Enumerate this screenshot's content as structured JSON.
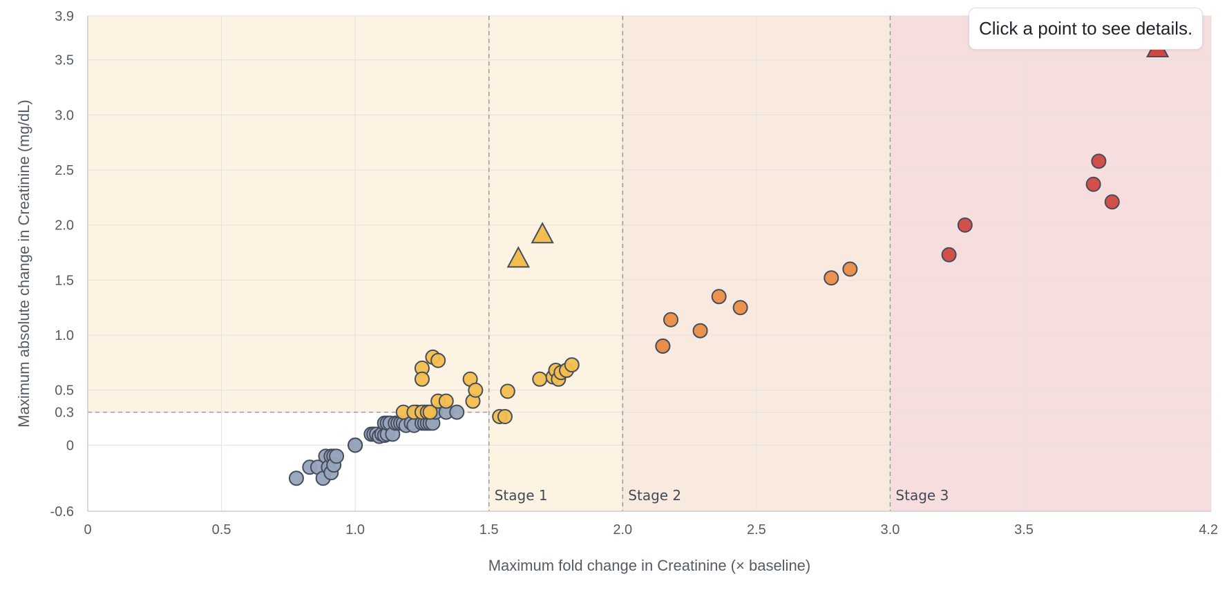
{
  "hint": {
    "text": "Click a point to see details."
  },
  "colors": {
    "stage_bg_1": "#fcf3e2",
    "stage_bg_2": "#f9eadf",
    "stage_bg_3": "#f6dede",
    "grid": "#e4e0dc",
    "threshold_line": "#999999",
    "none": "#96a4ba",
    "stage1": "#f3be4f",
    "stage2": "#ea8d46",
    "stage3": "#cf4841",
    "marker_stroke": "#454c5c"
  },
  "chart_data": {
    "type": "scatter",
    "title": "",
    "xlabel": "Maximum fold change in Creatinine (× baseline)",
    "ylabel": "Maximum absolute change in Creatinine (mg/dL)",
    "xlim": [
      0,
      4.2
    ],
    "ylim": [
      -0.6,
      3.9
    ],
    "x_ticks": [
      "0",
      "0.5",
      "1.0",
      "1.5",
      "2.0",
      "2.5",
      "3.0",
      "3.5",
      "4.2"
    ],
    "y_ticks": [
      "-0.6",
      "0",
      "0.3",
      "0.5",
      "1.0",
      "1.5",
      "2.0",
      "2.5",
      "3.0",
      "3.5",
      "3.9"
    ],
    "grid": true,
    "legend": "none",
    "thresholds": {
      "absolute_change": 0.3,
      "fold_stage1": 1.5,
      "fold_stage2": 2.0,
      "fold_stage3": 3.0
    },
    "stage_labels": [
      "Stage 1",
      "Stage 2",
      "Stage 3"
    ],
    "series": [
      {
        "key": "none",
        "marker": "circle",
        "points": [
          [
            0.78,
            -0.3
          ],
          [
            0.83,
            -0.2
          ],
          [
            0.86,
            -0.2
          ],
          [
            0.88,
            -0.3
          ],
          [
            0.89,
            -0.1
          ],
          [
            0.9,
            -0.2
          ],
          [
            0.91,
            -0.1
          ],
          [
            0.91,
            -0.25
          ],
          [
            0.92,
            -0.1
          ],
          [
            0.92,
            -0.18
          ],
          [
            0.93,
            -0.1
          ],
          [
            1.0,
            0.0
          ],
          [
            1.0,
            0.0
          ],
          [
            1.0,
            0.0
          ],
          [
            1.06,
            0.1
          ],
          [
            1.07,
            0.1
          ],
          [
            1.08,
            0.1
          ],
          [
            1.09,
            0.08
          ],
          [
            1.1,
            0.1
          ],
          [
            1.11,
            0.2
          ],
          [
            1.11,
            0.09
          ],
          [
            1.12,
            0.1
          ],
          [
            1.12,
            0.2
          ],
          [
            1.13,
            0.2
          ],
          [
            1.14,
            0.1
          ],
          [
            1.15,
            0.2
          ],
          [
            1.16,
            0.2
          ],
          [
            1.17,
            0.2
          ],
          [
            1.18,
            0.2
          ],
          [
            1.19,
            0.18
          ],
          [
            1.21,
            0.2
          ],
          [
            1.22,
            0.18
          ],
          [
            1.23,
            0.3
          ],
          [
            1.25,
            0.2
          ],
          [
            1.26,
            0.2
          ],
          [
            1.26,
            0.3
          ],
          [
            1.27,
            0.2
          ],
          [
            1.28,
            0.2
          ],
          [
            1.29,
            0.2
          ],
          [
            1.3,
            0.3
          ],
          [
            1.34,
            0.3
          ],
          [
            1.38,
            0.3
          ]
        ]
      },
      {
        "key": "stage1",
        "marker": "circle",
        "points": [
          [
            1.18,
            0.3
          ],
          [
            1.22,
            0.3
          ],
          [
            1.25,
            0.7
          ],
          [
            1.25,
            0.6
          ],
          [
            1.25,
            0.3
          ],
          [
            1.27,
            0.3
          ],
          [
            1.28,
            0.3
          ],
          [
            1.29,
            0.8
          ],
          [
            1.31,
            0.77
          ],
          [
            1.31,
            0.4
          ],
          [
            1.34,
            0.4
          ],
          [
            1.43,
            0.6
          ],
          [
            1.44,
            0.4
          ],
          [
            1.45,
            0.5
          ],
          [
            1.54,
            0.26
          ],
          [
            1.56,
            0.26
          ],
          [
            1.57,
            0.49
          ],
          [
            1.69,
            0.6
          ],
          [
            1.74,
            0.62
          ],
          [
            1.75,
            0.68
          ],
          [
            1.76,
            0.6
          ],
          [
            1.77,
            0.66
          ],
          [
            1.79,
            0.68
          ],
          [
            1.81,
            0.73
          ]
        ]
      },
      {
        "key": "stage1",
        "marker": "triangle",
        "points": [
          [
            1.61,
            1.69
          ],
          [
            1.7,
            1.91
          ]
        ]
      },
      {
        "key": "stage2",
        "marker": "circle",
        "points": [
          [
            2.15,
            0.9
          ],
          [
            2.15,
            0.9
          ],
          [
            2.18,
            1.14
          ],
          [
            2.29,
            1.04
          ],
          [
            2.36,
            1.35
          ],
          [
            2.44,
            1.25
          ],
          [
            2.78,
            1.52
          ],
          [
            2.85,
            1.6
          ]
        ]
      },
      {
        "key": "stage3",
        "marker": "circle",
        "points": [
          [
            3.22,
            1.73
          ],
          [
            3.28,
            2.0
          ],
          [
            3.76,
            2.37
          ],
          [
            3.78,
            2.58
          ],
          [
            3.83,
            2.21
          ]
        ]
      },
      {
        "key": "stage3",
        "marker": "triangle",
        "points": [
          [
            4.0,
            3.6
          ]
        ]
      }
    ]
  }
}
